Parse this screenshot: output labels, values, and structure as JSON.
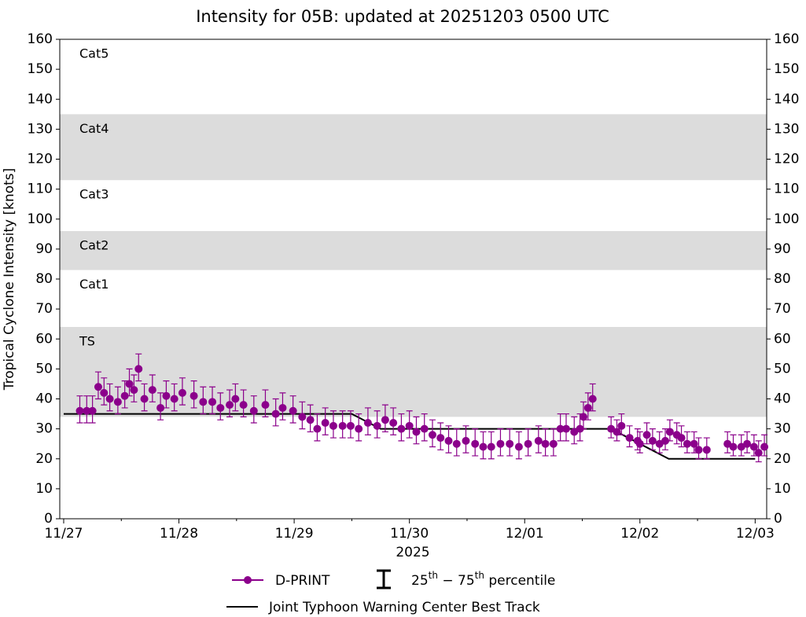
{
  "chart_data": {
    "type": "scatter",
    "title": "Intensity for 05B: updated at 20251203 0500 UTC",
    "ylabel": "Tropical Cyclone Intensity [knots]",
    "xlabel": "2025",
    "xlim": [
      -0.034,
      6.1
    ],
    "xticks": [
      {
        "value": 0,
        "label": "11/27"
      },
      {
        "value": 1,
        "label": "11/28"
      },
      {
        "value": 2,
        "label": "11/29"
      },
      {
        "value": 3,
        "label": "11/30"
      },
      {
        "value": 4,
        "label": "12/01"
      },
      {
        "value": 5,
        "label": "12/02"
      },
      {
        "value": 6,
        "label": "12/03"
      }
    ],
    "xminorticks": [
      0.5,
      1.5,
      2.5,
      3.5,
      4.5,
      5.5
    ],
    "ylim": [
      0,
      160
    ],
    "yticks": [
      0,
      10,
      20,
      30,
      40,
      50,
      60,
      70,
      80,
      90,
      100,
      110,
      120,
      130,
      140,
      150,
      160
    ],
    "bands": [
      {
        "label": "TS",
        "from": 34,
        "to": 64,
        "shaded": true
      },
      {
        "label": "Cat1",
        "from": 64,
        "to": 83,
        "shaded": false
      },
      {
        "label": "Cat2",
        "from": 83,
        "to": 96,
        "shaded": true
      },
      {
        "label": "Cat3",
        "from": 96,
        "to": 113,
        "shaded": false
      },
      {
        "label": "Cat4",
        "from": 113,
        "to": 135,
        "shaded": true
      },
      {
        "label": "Cat5",
        "from": 135,
        "to": 160,
        "shaded": false
      }
    ],
    "band_color": "#dcdcdc",
    "percentile_label": [
      {
        "text": "25"
      },
      {
        "text": "th",
        "sup": true
      },
      {
        "text": " − 75"
      },
      {
        "text": "th",
        "sup": true
      },
      {
        "text": " percentile"
      }
    ],
    "series": [
      {
        "name": "D-PRINT",
        "type": "scatter",
        "color": "#8b008b",
        "x": [
          0.14,
          0.2,
          0.25,
          0.3,
          0.35,
          0.4,
          0.47,
          0.53,
          0.57,
          0.61,
          0.65,
          0.7,
          0.77,
          0.84,
          0.89,
          0.96,
          1.03,
          1.13,
          1.21,
          1.29,
          1.36,
          1.44,
          1.49,
          1.56,
          1.65,
          1.75,
          1.84,
          1.9,
          1.99,
          2.07,
          2.14,
          2.2,
          2.27,
          2.34,
          2.42,
          2.49,
          2.56,
          2.64,
          2.72,
          2.79,
          2.86,
          2.93,
          3.0,
          3.06,
          3.13,
          3.2,
          3.27,
          3.34,
          3.41,
          3.49,
          3.57,
          3.64,
          3.71,
          3.79,
          3.87,
          3.95,
          4.03,
          4.12,
          4.18,
          4.25,
          4.31,
          4.36,
          4.43,
          4.48,
          4.51,
          4.55,
          4.59,
          4.75,
          4.8,
          4.84,
          4.91,
          4.98,
          5.0,
          5.06,
          5.11,
          5.17,
          5.22,
          5.26,
          5.32,
          5.36,
          5.41,
          5.47,
          5.51,
          5.58,
          5.76,
          5.81,
          5.88,
          5.93,
          5.99,
          6.03,
          6.08
        ],
        "values": [
          36,
          36,
          36,
          44,
          42,
          40,
          39,
          41,
          45,
          43,
          50,
          40,
          43,
          37,
          41,
          40,
          42,
          41,
          39,
          39,
          37,
          38,
          40,
          38,
          36,
          38,
          35,
          37,
          36,
          34,
          33,
          30,
          32,
          31,
          31,
          31,
          30,
          32,
          31,
          33,
          32,
          30,
          31,
          29,
          30,
          28,
          27,
          26,
          25,
          26,
          25,
          24,
          24,
          25,
          25,
          24,
          25,
          26,
          25,
          25,
          30,
          30,
          29,
          30,
          34,
          37,
          40,
          30,
          29,
          31,
          27,
          26,
          25,
          28,
          26,
          25,
          26,
          29,
          28,
          27,
          25,
          25,
          23,
          23,
          25,
          24,
          24,
          25,
          24,
          22,
          24
        ],
        "p25": [
          32,
          32,
          32,
          40,
          38,
          36,
          35,
          37,
          41,
          39,
          46,
          36,
          39,
          33,
          37,
          36,
          38,
          37,
          35,
          35,
          33,
          34,
          36,
          34,
          32,
          34,
          31,
          33,
          32,
          30,
          29,
          26,
          28,
          27,
          27,
          27,
          26,
          28,
          27,
          29,
          28,
          26,
          27,
          25,
          26,
          24,
          23,
          22,
          21,
          22,
          21,
          20,
          20,
          21,
          21,
          20,
          21,
          22,
          21,
          21,
          26,
          26,
          25,
          26,
          30,
          33,
          36,
          27,
          26,
          28,
          24,
          23,
          22,
          25,
          23,
          22,
          23,
          26,
          25,
          24,
          22,
          22,
          20,
          20,
          22,
          21,
          21,
          22,
          21,
          19,
          21
        ],
        "p75": [
          41,
          41,
          41,
          49,
          47,
          45,
          44,
          46,
          50,
          48,
          55,
          45,
          48,
          42,
          46,
          45,
          47,
          46,
          44,
          44,
          42,
          43,
          45,
          43,
          41,
          43,
          40,
          42,
          41,
          39,
          38,
          35,
          37,
          36,
          36,
          36,
          35,
          37,
          36,
          38,
          37,
          35,
          36,
          34,
          35,
          33,
          32,
          31,
          30,
          31,
          30,
          29,
          29,
          30,
          30,
          29,
          30,
          31,
          30,
          30,
          35,
          35,
          34,
          35,
          39,
          42,
          45,
          34,
          33,
          35,
          31,
          30,
          29,
          32,
          30,
          29,
          30,
          33,
          32,
          31,
          29,
          29,
          27,
          27,
          29,
          28,
          28,
          29,
          28,
          26,
          28
        ]
      },
      {
        "name": "Joint Typhoon Warning Center Best Track",
        "type": "line",
        "color": "#000000",
        "x": [
          0,
          2.5,
          2.75,
          4.75,
          5.0,
          5.25,
          6.0
        ],
        "values": [
          35,
          35,
          30,
          30,
          25,
          20,
          20
        ]
      }
    ]
  }
}
